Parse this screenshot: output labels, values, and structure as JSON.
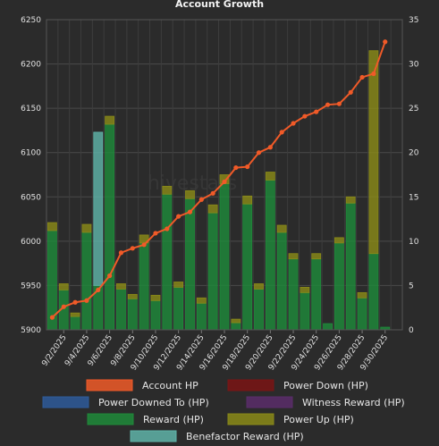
{
  "chart_data": {
    "type": "bar",
    "title": "Account Growth",
    "watermark": "hivestats",
    "left_axis": {
      "min": 5900,
      "max": 6250,
      "ticks": [
        5900,
        5950,
        6000,
        6050,
        6100,
        6150,
        6200,
        6250
      ]
    },
    "right_axis": {
      "min": 0,
      "max": 35,
      "ticks": [
        0,
        5,
        10,
        15,
        20,
        25,
        30,
        35
      ]
    },
    "x_tick_labels": [
      "9/2/2025",
      "9/4/2025",
      "9/6/2025",
      "9/8/2025",
      "9/10/2025",
      "9/12/2025",
      "9/14/2025",
      "9/16/2025",
      "9/18/2025",
      "9/20/2025",
      "9/22/2025",
      "9/24/2025",
      "9/26/2025",
      "9/28/2025",
      "9/30/2025"
    ],
    "days": [
      "9/1",
      "9/2",
      "9/3",
      "9/4",
      "9/5",
      "9/6",
      "9/7",
      "9/8",
      "9/9",
      "9/10",
      "9/11",
      "9/12",
      "9/13",
      "9/14",
      "9/15",
      "9/16",
      "9/17",
      "9/18",
      "9/19",
      "9/20",
      "9/21",
      "9/22",
      "9/23",
      "9/24",
      "9/25",
      "9/26",
      "9/27",
      "9/28",
      "9/29",
      "9/30",
      "10/1"
    ],
    "series": [
      {
        "name": "Account HP",
        "kind": "line",
        "axis": "left",
        "color": "#f05a28",
        "values": [
          5914,
          5926,
          5931,
          5933,
          5945,
          5961,
          5987,
          5992,
          5996,
          6009,
          6014,
          6028,
          6033,
          6047,
          6054,
          6067,
          6083,
          6084,
          6100,
          6106,
          6123,
          6133,
          6141,
          6146,
          6154,
          6155,
          6168,
          6185,
          6189,
          6225,
          null
        ]
      },
      {
        "name": "Power Down (HP)",
        "kind": "bar",
        "axis": "right",
        "color": "#7a1414",
        "values": []
      },
      {
        "name": "Power Downed To (HP)",
        "kind": "bar",
        "axis": "right",
        "color": "#2e5b9a",
        "values": []
      },
      {
        "name": "Witness Reward (HP)",
        "kind": "bar",
        "axis": "right",
        "color": "#5a2d6a",
        "values": []
      },
      {
        "name": "Reward (HP)",
        "kind": "bar",
        "axis": "right",
        "color": "#1f8a3a",
        "values": [
          11.2,
          4.5,
          1.5,
          11.0,
          5.0,
          23.2,
          4.6,
          3.5,
          9.8,
          3.3,
          15.3,
          4.8,
          14.8,
          3.0,
          13.2,
          16.5,
          0.8,
          14.2,
          4.6,
          16.9,
          11.0,
          8.0,
          4.2,
          8.0,
          0.7,
          9.8,
          14.3,
          3.6,
          8.6,
          0.3,
          0
        ]
      },
      {
        "name": "Power Up (HP)",
        "kind": "bar",
        "axis": "right",
        "color": "#8a8a18",
        "values": [
          0.9,
          0.7,
          0.4,
          0.9,
          0,
          0.9,
          0.6,
          0.5,
          0.9,
          0.6,
          0.9,
          0.6,
          0.9,
          0.6,
          0.9,
          1.0,
          0.4,
          0.9,
          0.6,
          0.9,
          0.8,
          0.6,
          0.6,
          0.6,
          0,
          0.6,
          0.7,
          0.6,
          22.9,
          0,
          0
        ]
      },
      {
        "name": "Benefactor Reward (HP)",
        "kind": "bar",
        "axis": "right",
        "color": "#5fb3a8",
        "values": [
          0,
          0,
          0,
          0,
          17.3,
          0,
          0,
          0,
          0,
          0,
          0,
          0,
          0,
          0,
          0,
          0,
          0,
          0,
          0,
          0,
          0,
          0,
          0,
          0,
          0,
          0,
          0,
          0,
          0,
          0,
          0
        ]
      }
    ],
    "grid": true,
    "legend_position": "bottom"
  }
}
